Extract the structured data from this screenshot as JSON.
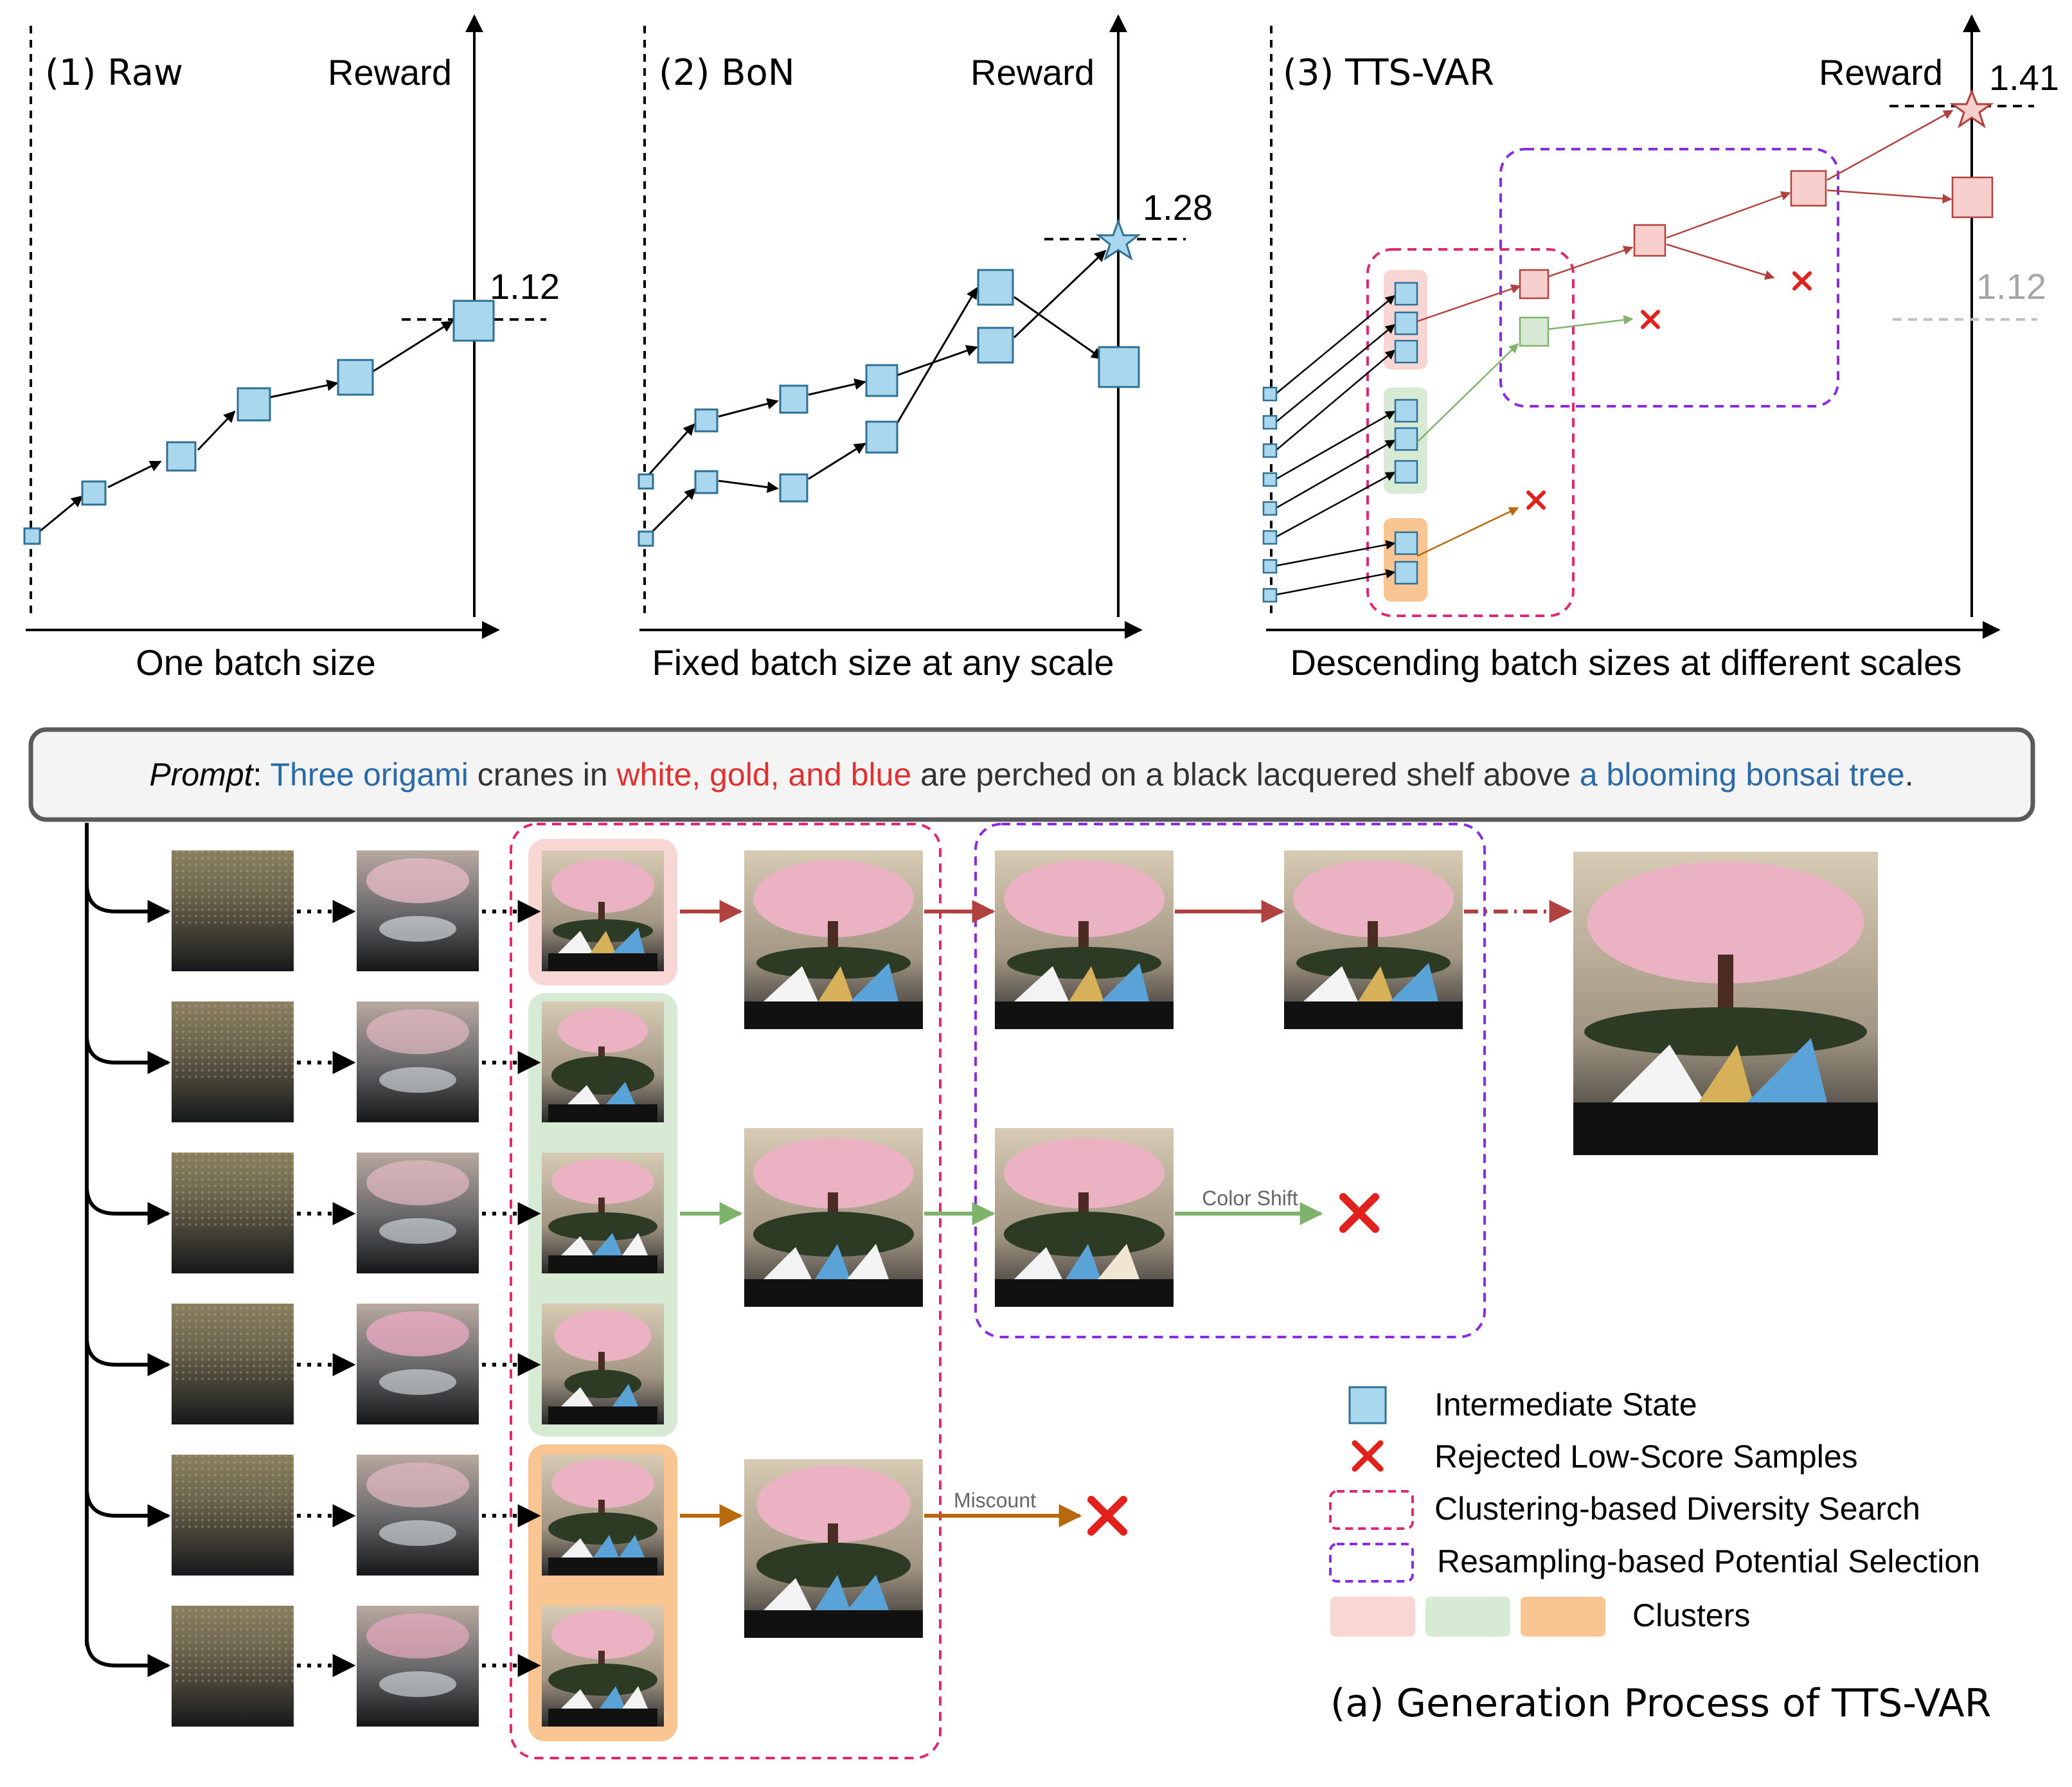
{
  "panels": [
    {
      "title": "(1) Raw",
      "reward_label": "Reward",
      "reward_value": "1.12",
      "xlabel": "One batch size"
    },
    {
      "title": "(2) BoN",
      "reward_label": "Reward",
      "reward_value": "1.28",
      "xlabel": "Fixed batch size at any scale"
    },
    {
      "title": "(3) TTS-VAR",
      "reward_label": "Reward",
      "reward_value": "1.41",
      "baseline_value": "1.12",
      "xlabel": "Descending batch sizes at different scales"
    }
  ],
  "prompt": {
    "label": "Prompt",
    "colon": ":",
    "seg1": "Three origami",
    "seg2": " cranes in ",
    "seg3": "white, gold, and blue",
    "seg4": " are perched on a black lacquered shelf above ",
    "seg5": "a blooming bonsai tree",
    "seg6": "."
  },
  "process": {
    "color_shift_label": "Color Shift",
    "miscount_label": "Miscount"
  },
  "legend": {
    "items": [
      {
        "icon": "intermediate-state-square",
        "label": "Intermediate State"
      },
      {
        "icon": "rejected-x-icon",
        "label": "Rejected Low-Score Samples"
      },
      {
        "icon": "pink-dashed-box",
        "label": "Clustering-based Diversity Search"
      },
      {
        "icon": "purple-dashed-box",
        "label": "Resampling-based Potential Selection"
      },
      {
        "icon": "cluster-swatches",
        "label": "Clusters"
      }
    ]
  },
  "caption": "(a) Generation Process of TTS-VAR",
  "colors": {
    "state_fill": "#a9d8ee",
    "state_stroke": "#2f6f94",
    "red_path": "#b0413e",
    "green_path": "#7fb26a",
    "orange_path": "#b8690e",
    "pink_cluster": "#f7d6d3",
    "green_cluster": "#d6ead4",
    "orange_cluster": "#f8c593",
    "pink_dash": "#e0286e",
    "purple_dash": "#8a2be2",
    "reject_red": "#e3211c",
    "blue_text": "#2a6aa8",
    "red_text": "#e03030"
  }
}
